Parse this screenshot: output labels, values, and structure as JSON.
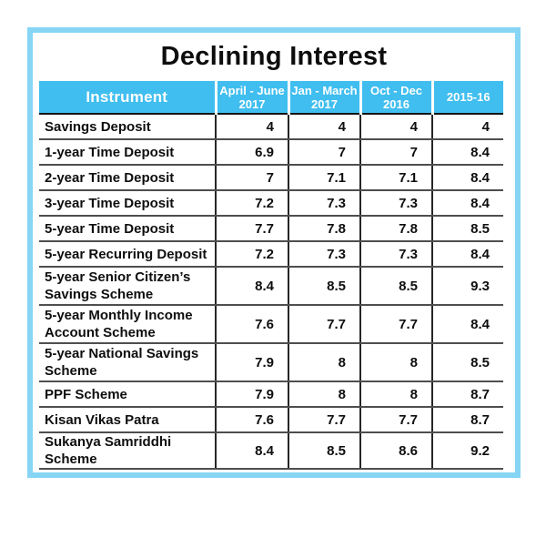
{
  "colors": {
    "frame_border": "#86d5f4",
    "header_bg": "#40beef",
    "header_text": "#ffffff",
    "row_line": "#4e4e4e",
    "column_line": "#262626",
    "text": "#0e0e0e"
  },
  "header": {
    "cols": [
      {
        "line1": "Instrument",
        "line2": ""
      },
      {
        "line1": "April - June",
        "line2": "2017"
      },
      {
        "line1": "Jan - March",
        "line2": "2017"
      },
      {
        "line1": "Oct - Dec",
        "line2": "2016"
      },
      {
        "line1": "2015-16",
        "line2": ""
      }
    ]
  },
  "chart_data": {
    "type": "table",
    "title": "Declining Interest",
    "columns": [
      "Instrument",
      "April - June 2017",
      "Jan - March 2017",
      "Oct - Dec 2016",
      "2015-16"
    ],
    "rows": [
      {
        "instrument": "Savings Deposit",
        "values": [
          4,
          4,
          4,
          4
        ]
      },
      {
        "instrument": "1-year Time Deposit",
        "values": [
          6.9,
          7,
          7,
          8.4
        ]
      },
      {
        "instrument": "2-year Time Deposit",
        "values": [
          7,
          7.1,
          7.1,
          8.4
        ]
      },
      {
        "instrument": "3-year Time Deposit",
        "values": [
          7.2,
          7.3,
          7.3,
          8.4
        ]
      },
      {
        "instrument": "5-year Time Deposit",
        "values": [
          7.7,
          7.8,
          7.8,
          8.5
        ]
      },
      {
        "instrument": "5-year Recurring Deposit",
        "values": [
          7.2,
          7.3,
          7.3,
          8.4
        ]
      },
      {
        "instrument": "5-year Senior Citizen’s Savings Scheme",
        "values": [
          8.4,
          8.5,
          8.5,
          9.3
        ]
      },
      {
        "instrument": "5-year Monthly Income Account Scheme",
        "values": [
          7.6,
          7.7,
          7.7,
          8.4
        ]
      },
      {
        "instrument": "5-year National Savings Scheme",
        "values": [
          7.9,
          8,
          8,
          8.5
        ]
      },
      {
        "instrument": "PPF Scheme",
        "values": [
          7.9,
          8,
          8,
          8.7
        ]
      },
      {
        "instrument": "Kisan Vikas Patra",
        "values": [
          7.6,
          7.7,
          7.7,
          8.7
        ]
      },
      {
        "instrument": "Sukanya Samriddhi Scheme",
        "values": [
          8.4,
          8.5,
          8.6,
          9.2
        ]
      }
    ]
  }
}
